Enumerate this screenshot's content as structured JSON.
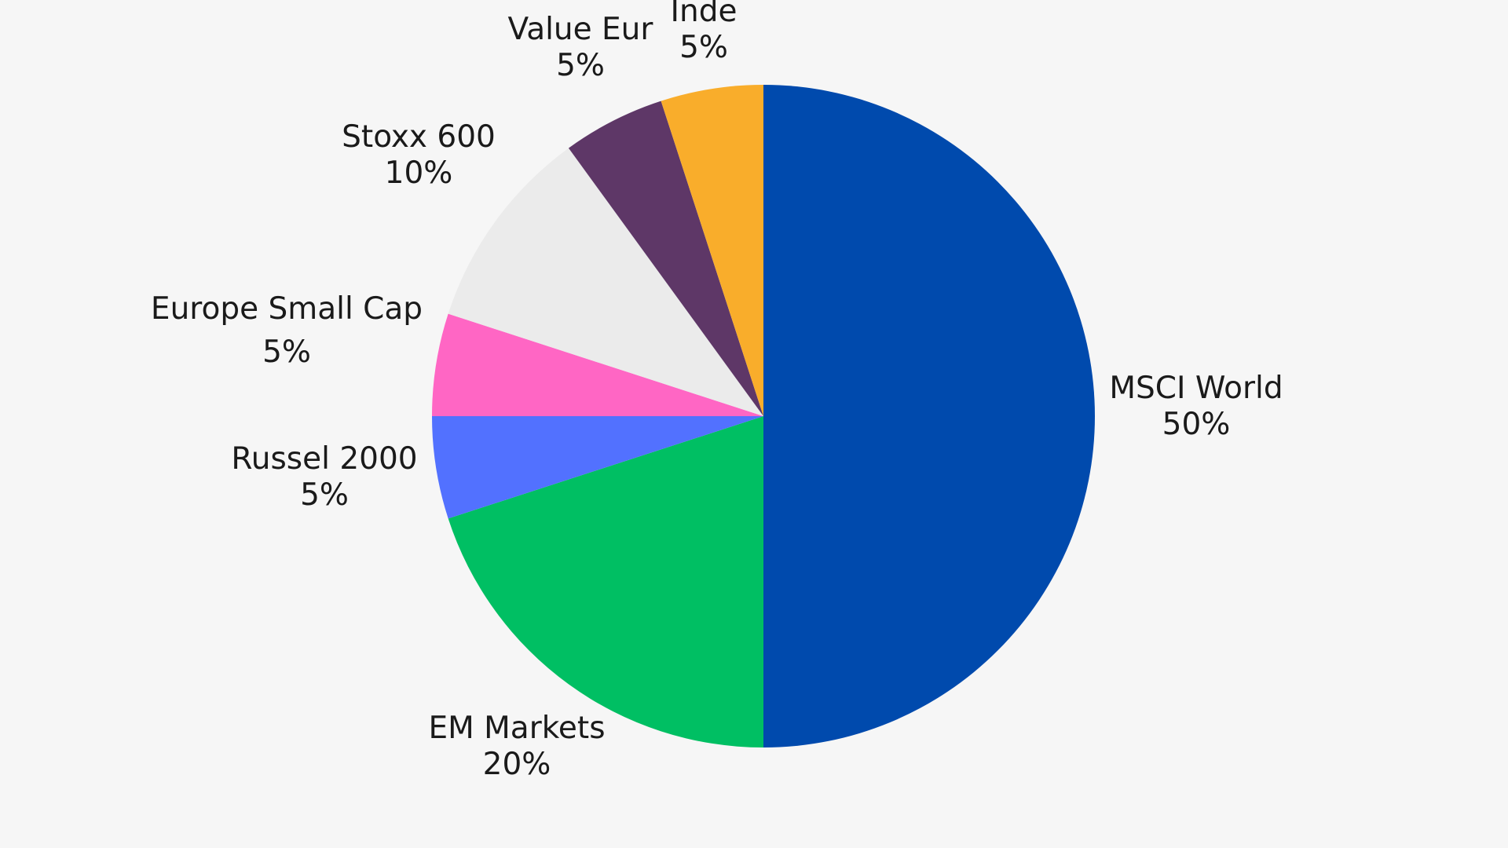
{
  "chart_data": {
    "type": "pie",
    "title": "",
    "start_angle_deg": 0,
    "direction": "clockwise",
    "slices": [
      {
        "label": "MSCI World",
        "value": 50,
        "value_label": "50%",
        "color": "#004aad"
      },
      {
        "label": "EM Markets",
        "value": 20,
        "value_label": "20%",
        "color": "#00bf63"
      },
      {
        "label": "Russel 2000",
        "value": 5,
        "value_label": "5%",
        "color": "#5271ff"
      },
      {
        "label": "Europe Small Cap",
        "value": 5,
        "value_label": "5%",
        "color": "#ff66c4"
      },
      {
        "label": "Stoxx 600",
        "value": 10,
        "value_label": "10%",
        "color": "#ebebeb"
      },
      {
        "label": "Value Eur",
        "value": 5,
        "value_label": "5%",
        "color": "#5e3767"
      },
      {
        "label": "Inde",
        "value": 5,
        "value_label": "5%",
        "color": "#f9ad2b"
      }
    ]
  }
}
